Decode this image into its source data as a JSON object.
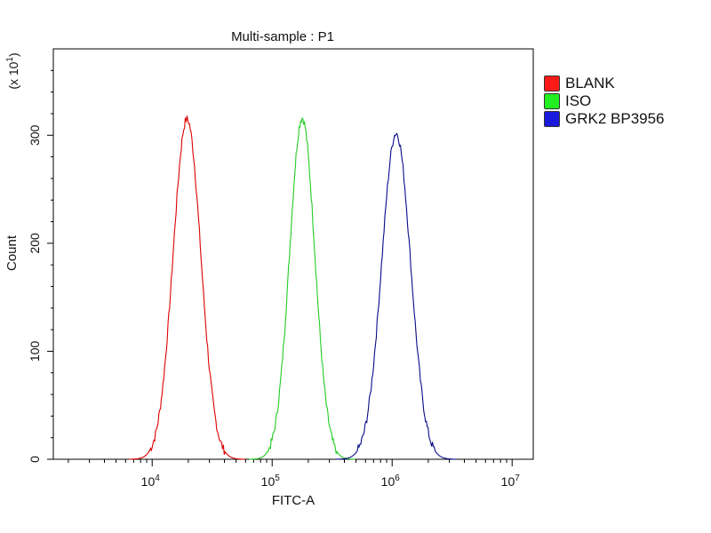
{
  "chart_data": {
    "type": "line",
    "title": "Multi-sample : P1",
    "xlabel": "FITC-A",
    "ylabel": "Count",
    "y_multiplier_label": "(x 10",
    "y_multiplier_exp": "1",
    "y_multiplier_close": ")",
    "x_scale": "log",
    "xlim": [
      1500,
      15000000
    ],
    "ylim": [
      0,
      380
    ],
    "x_ticks": [
      {
        "value": 10000,
        "base": "10",
        "exp": "4"
      },
      {
        "value": 100000,
        "base": "10",
        "exp": "5"
      },
      {
        "value": 1000000,
        "base": "10",
        "exp": "6"
      },
      {
        "value": 10000000,
        "base": "10",
        "exp": "7"
      }
    ],
    "y_ticks": [
      0,
      100,
      200,
      300
    ],
    "grid": false,
    "legend_position": "top-right",
    "series": [
      {
        "name": "BLANK",
        "color": "#e00000",
        "swatch": "#ff1a1a",
        "peak_x": 19500,
        "peak_y": 315,
        "sigma_log10": 0.115
      },
      {
        "name": "ISO",
        "color": "#22cc22",
        "swatch": "#22ee22",
        "peak_x": 178000,
        "peak_y": 316,
        "sigma_log10": 0.105
      },
      {
        "name": "GRK2 BP3956",
        "color": "#0a0a8a",
        "swatch": "#1a1adc",
        "peak_x": 1080000,
        "peak_y": 302,
        "sigma_log10": 0.12
      }
    ]
  }
}
